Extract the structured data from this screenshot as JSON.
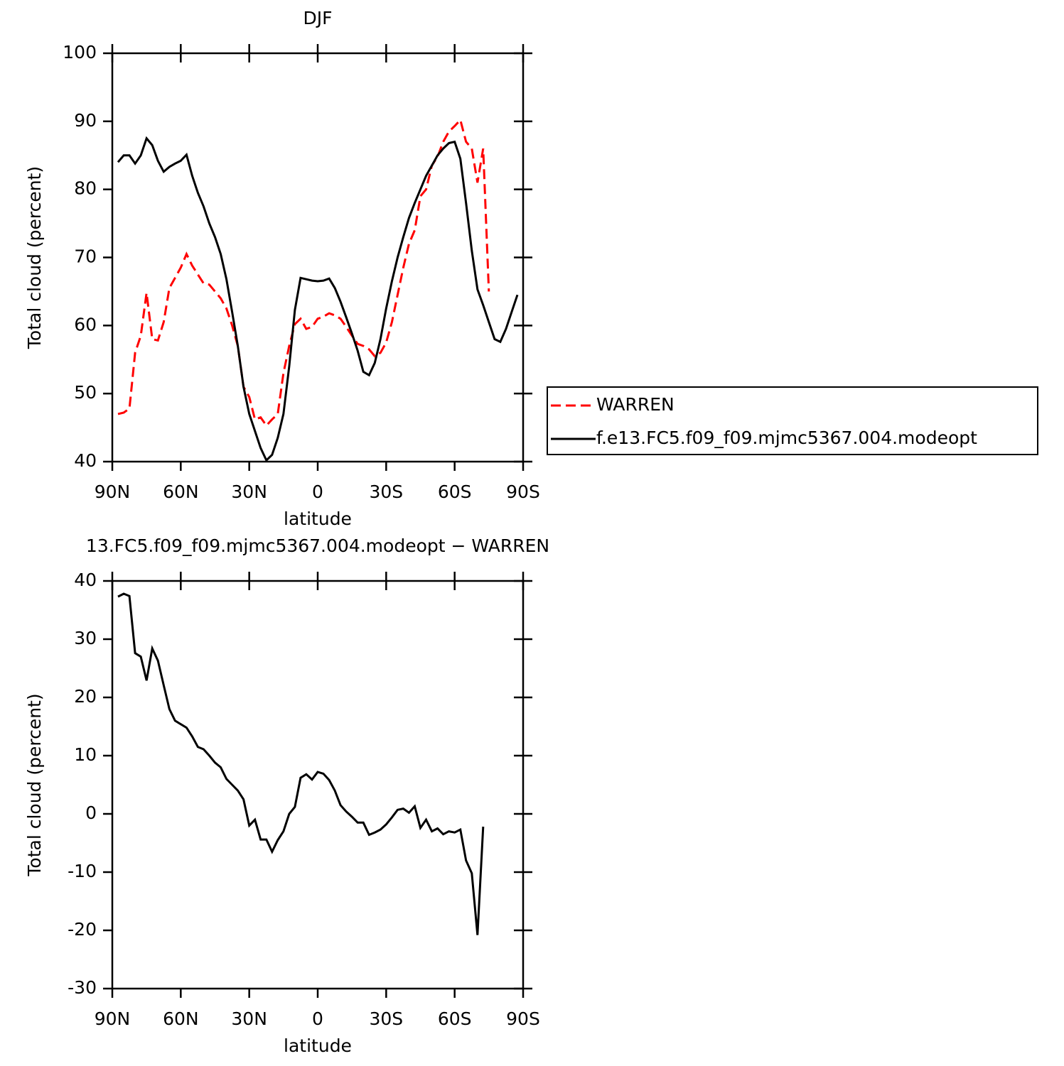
{
  "chart_data": [
    {
      "type": "line",
      "title": "DJF",
      "xlabel": "latitude",
      "ylabel": "Total cloud (percent)",
      "x": [
        87.5,
        85,
        82.5,
        80,
        77.5,
        75,
        72.5,
        70,
        67.5,
        65,
        62.5,
        60,
        57.5,
        55,
        52.5,
        50,
        47.5,
        45,
        42.5,
        40,
        37.5,
        35,
        32.5,
        30,
        27.5,
        25,
        22.5,
        20,
        17.5,
        15,
        12.5,
        10,
        7.5,
        5,
        2.5,
        0,
        -2.5,
        -5,
        -7.5,
        -10,
        -12.5,
        -15,
        -17.5,
        -20,
        -22.5,
        -25,
        -27.5,
        -30,
        -32.5,
        -35,
        -37.5,
        -40,
        -42.5,
        -45,
        -47.5,
        -50,
        -52.5,
        -55,
        -57.5,
        -60,
        -62.5,
        -65,
        -67.5,
        -70,
        -72.5,
        -75,
        -77.5,
        -80,
        -82.5,
        -85,
        -87.5
      ],
      "series": [
        {
          "name": "WARREN",
          "color": "#ff0000",
          "line_style": "dashed",
          "values": [
            47.0,
            47.2,
            47.8,
            56.0,
            58.5,
            64.8,
            58.0,
            57.8,
            60.5,
            65.5,
            67.0,
            68.5,
            70.5,
            68.8,
            67.5,
            66.2,
            66.0,
            65.0,
            64.0,
            62.5,
            60.0,
            57.0,
            51.0,
            49.5,
            46.2,
            46.5,
            45.3,
            46.2,
            47.0,
            53.0,
            57.0,
            60.2,
            61.0,
            59.5,
            59.8,
            61.0,
            61.3,
            61.8,
            61.5,
            61.0,
            59.8,
            58.5,
            57.3,
            57.0,
            56.5,
            55.5,
            56.0,
            57.5,
            60.5,
            64.5,
            68.5,
            72.0,
            74.0,
            79.0,
            80.0,
            83.5,
            84.8,
            87.0,
            88.5,
            89.3,
            90.2,
            87.0,
            86.0,
            81.0,
            86.0,
            65.0,
            null,
            null,
            null,
            null,
            null
          ]
        },
        {
          "name": "f.e13.FC5.f09_f09.mjmc5367.004.modeopt",
          "color": "#000000",
          "line_style": "solid",
          "values": [
            84.0,
            85.0,
            85.0,
            83.8,
            85.0,
            87.5,
            86.5,
            84.2,
            82.6,
            83.3,
            83.8,
            84.2,
            85.1,
            82.0,
            79.5,
            77.5,
            75.0,
            73.0,
            70.5,
            66.8,
            62.0,
            57.0,
            51.0,
            47.0,
            44.5,
            42.0,
            40.2,
            41.0,
            43.5,
            47.0,
            54.0,
            62.3,
            67.0,
            66.8,
            66.6,
            66.5,
            66.6,
            66.9,
            65.5,
            63.5,
            61.2,
            58.8,
            56.3,
            53.2,
            52.7,
            54.5,
            58.0,
            62.5,
            66.5,
            70.0,
            73.0,
            75.8,
            78.0,
            80.0,
            82.0,
            83.5,
            85.0,
            86.0,
            86.8,
            87.0,
            84.5,
            78.0,
            71.0,
            65.3,
            63.0,
            60.5,
            58.0,
            57.6,
            59.5,
            62.0,
            64.5
          ]
        }
      ],
      "legend": "outside-right",
      "xlim": [
        90,
        -90
      ],
      "xticks": [
        {
          "value": 90,
          "label": "90N"
        },
        {
          "value": 60,
          "label": "60N"
        },
        {
          "value": 30,
          "label": "30N"
        },
        0,
        {
          "value": -30,
          "label": "30S"
        },
        {
          "value": -60,
          "label": "60S"
        },
        {
          "value": -90,
          "label": "90S"
        }
      ],
      "ylim": [
        40,
        100
      ],
      "yticks": [
        40,
        50,
        60,
        70,
        80,
        90,
        100
      ]
    },
    {
      "type": "line",
      "title": "13.FC5.f09_f09.mjmc5367.004.modeopt − WARREN",
      "xlabel": "latitude",
      "ylabel": "Total cloud (percent)",
      "x": [
        87.5,
        85,
        82.5,
        80,
        77.5,
        75,
        72.5,
        70,
        67.5,
        65,
        62.5,
        60,
        57.5,
        55,
        52.5,
        50,
        47.5,
        45,
        42.5,
        40,
        37.5,
        35,
        32.5,
        30,
        27.5,
        25,
        22.5,
        20,
        17.5,
        15,
        12.5,
        10,
        7.5,
        5,
        2.5,
        0,
        -2.5,
        -5,
        -7.5,
        -10,
        -12.5,
        -15,
        -17.5,
        -20,
        -22.5,
        -25,
        -27.5,
        -30,
        -32.5,
        -35,
        -37.5,
        -40,
        -42.5,
        -45,
        -47.5,
        -50,
        -52.5,
        -55,
        -57.5,
        -60,
        -62.5,
        -65,
        -67.5,
        -70,
        -72.5,
        -75,
        -77.5,
        -80,
        -82.5,
        -85,
        -87.5
      ],
      "series": [
        {
          "color": "#000000",
          "line_style": "solid",
          "values": [
            37.3,
            37.8,
            37.4,
            27.6,
            27.0,
            22.9,
            28.4,
            26.3,
            22.1,
            18.0,
            16.0,
            15.4,
            14.8,
            13.3,
            11.5,
            11.1,
            10.0,
            8.8,
            8.0,
            6.0,
            5.0,
            4.0,
            2.5,
            -2.0,
            -1.0,
            -4.4,
            -4.4,
            -6.5,
            -4.5,
            -3.0,
            0.0,
            1.2,
            6.2,
            6.8,
            5.9,
            7.2,
            6.9,
            5.8,
            4.0,
            1.5,
            0.4,
            -0.5,
            -1.5,
            -1.5,
            -3.6,
            -3.2,
            -2.7,
            -1.8,
            -0.6,
            0.7,
            0.9,
            0.2,
            1.3,
            -2.4,
            -1.0,
            -3.0,
            -2.5,
            -3.5,
            -3.0,
            -3.2,
            -2.7,
            -8.0,
            -10.2,
            -20.8,
            -2.2,
            null,
            null,
            null,
            null,
            null,
            null
          ]
        }
      ],
      "xlim": [
        90,
        -90
      ],
      "xticks": [
        {
          "value": 90,
          "label": "90N"
        },
        {
          "value": 60,
          "label": "60N"
        },
        {
          "value": 30,
          "label": "30N"
        },
        0,
        {
          "value": -30,
          "label": "30S"
        },
        {
          "value": -60,
          "label": "60S"
        },
        {
          "value": -90,
          "label": "90S"
        }
      ],
      "ylim": [
        -30,
        40
      ],
      "yticks": [
        -30,
        -20,
        -10,
        0,
        10,
        20,
        30,
        40
      ]
    }
  ]
}
